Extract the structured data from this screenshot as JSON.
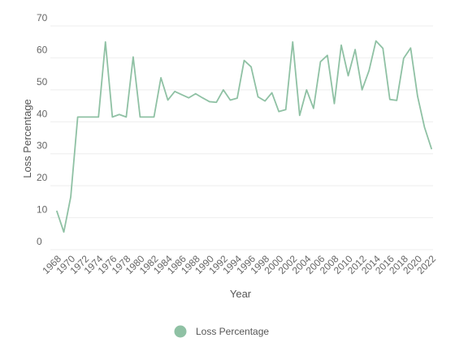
{
  "chart_data": {
    "type": "line",
    "xlabel": "Year",
    "ylabel": "Loss Percentage",
    "ylim": [
      0,
      70
    ],
    "yticks": [
      0,
      10,
      20,
      30,
      40,
      50,
      60,
      70
    ],
    "grid": "horizontal",
    "legend_position": "bottom",
    "colors": {
      "series": "#8fc1a4"
    },
    "xtick_labels": [
      "1968",
      "1970",
      "1972",
      "1974",
      "1976",
      "1978",
      "1980",
      "1982",
      "1984",
      "1986",
      "1988",
      "1990",
      "1992",
      "1994",
      "1996",
      "1998",
      "2000",
      "2002",
      "2004",
      "2006",
      "2008",
      "2010",
      "2012",
      "2014",
      "2016",
      "2018",
      "2020",
      "2022"
    ],
    "series": [
      {
        "name": "Loss Percentage",
        "x": [
          1968,
          1969,
          1970,
          1971,
          1972,
          1973,
          1974,
          1975,
          1976,
          1977,
          1978,
          1979,
          1980,
          1981,
          1982,
          1983,
          1984,
          1985,
          1986,
          1987,
          1988,
          1989,
          1990,
          1991,
          1992,
          1993,
          1994,
          1995,
          1996,
          1997,
          1998,
          1999,
          2000,
          2001,
          2002,
          2003,
          2004,
          2005,
          2006,
          2007,
          2008,
          2009,
          2010,
          2011,
          2012,
          2013,
          2014,
          2015,
          2016,
          2017,
          2018,
          2019,
          2020,
          2021,
          2022
        ],
        "values": [
          12,
          5.5,
          16.5,
          41.5,
          41.5,
          41.5,
          41.5,
          65,
          41.5,
          42.3,
          41.5,
          60.3,
          41.5,
          41.5,
          41.5,
          53.8,
          46.8,
          49.5,
          48.5,
          47.5,
          48.8,
          47.5,
          46.3,
          46.1,
          50,
          46.8,
          47.4,
          59.2,
          57.2,
          47.8,
          46.5,
          49.1,
          43.2,
          43.8,
          65,
          42,
          50,
          44.2,
          58.8,
          60.8,
          45.7,
          64,
          54.4,
          62.6,
          50,
          56,
          65.3,
          63,
          47,
          46.7,
          59.9,
          63.1,
          48,
          38.3,
          31.6
        ]
      }
    ]
  }
}
